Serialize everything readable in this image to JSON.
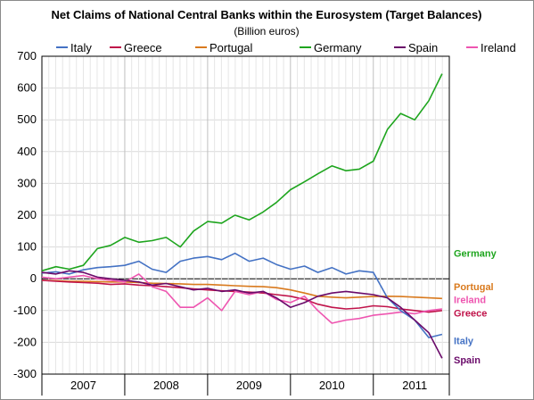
{
  "chart_data": {
    "type": "line",
    "title": "Net Claims of National Central Banks within the Eurosystem (Target Balances)",
    "subtitle": "(Billion euros)",
    "xlabel": "",
    "ylabel": "",
    "ylim": [
      -300,
      700
    ],
    "yticks": [
      700,
      600,
      500,
      400,
      300,
      200,
      100,
      0,
      -100,
      -200,
      -300
    ],
    "xlim": [
      2007.0,
      2011.917
    ],
    "years": [
      "2007",
      "2008",
      "2009",
      "2010",
      "2011"
    ],
    "grid": true,
    "legend_position": "top",
    "series": [
      {
        "name": "Italy",
        "color": "#4472c4",
        "end_label": "Italy",
        "x": [
          2007.0,
          2007.17,
          2007.33,
          2007.5,
          2007.67,
          2007.83,
          2008.0,
          2008.17,
          2008.33,
          2008.5,
          2008.67,
          2008.83,
          2009.0,
          2009.17,
          2009.33,
          2009.5,
          2009.67,
          2009.83,
          2010.0,
          2010.17,
          2010.33,
          2010.5,
          2010.67,
          2010.83,
          2011.0,
          2011.17,
          2011.33,
          2011.5,
          2011.67,
          2011.83
        ],
        "y": [
          18,
          22,
          15,
          28,
          35,
          38,
          42,
          55,
          30,
          20,
          55,
          65,
          70,
          60,
          80,
          55,
          65,
          45,
          30,
          40,
          20,
          35,
          15,
          25,
          20,
          -60,
          -100,
          -130,
          -185,
          -175
        ]
      },
      {
        "name": "Greece",
        "color": "#c0134a",
        "end_label": "Greece",
        "x": [
          2007.0,
          2007.17,
          2007.33,
          2007.5,
          2007.67,
          2007.83,
          2008.0,
          2008.17,
          2008.33,
          2008.5,
          2008.67,
          2008.83,
          2009.0,
          2009.17,
          2009.33,
          2009.5,
          2009.67,
          2009.83,
          2010.0,
          2010.17,
          2010.33,
          2010.5,
          2010.67,
          2010.83,
          2011.0,
          2011.17,
          2011.33,
          2011.5,
          2011.67,
          2011.83
        ],
        "y": [
          -5,
          -8,
          -10,
          -12,
          -14,
          -18,
          -16,
          -20,
          -22,
          -25,
          -28,
          -32,
          -35,
          -38,
          -40,
          -42,
          -45,
          -50,
          -55,
          -65,
          -80,
          -90,
          -95,
          -92,
          -85,
          -88,
          -95,
          -100,
          -105,
          -100
        ]
      },
      {
        "name": "Portugal",
        "color": "#d97a1e",
        "end_label": "Portugal",
        "x": [
          2007.0,
          2007.17,
          2007.33,
          2007.5,
          2007.67,
          2007.83,
          2008.0,
          2008.17,
          2008.33,
          2008.5,
          2008.67,
          2008.83,
          2009.0,
          2009.17,
          2009.33,
          2009.5,
          2009.67,
          2009.83,
          2010.0,
          2010.17,
          2010.33,
          2010.5,
          2010.67,
          2010.83,
          2011.0,
          2011.17,
          2011.33,
          2011.5,
          2011.67,
          2011.83
        ],
        "y": [
          -5,
          -6,
          -8,
          -8,
          -9,
          -10,
          -10,
          -12,
          -14,
          -15,
          -16,
          -18,
          -18,
          -20,
          -22,
          -24,
          -25,
          -28,
          -35,
          -45,
          -55,
          -58,
          -60,
          -58,
          -56,
          -55,
          -56,
          -58,
          -60,
          -62
        ]
      },
      {
        "name": "Germany",
        "color": "#1ea51e",
        "end_label": "Germany",
        "x": [
          2007.0,
          2007.17,
          2007.33,
          2007.5,
          2007.67,
          2007.83,
          2008.0,
          2008.17,
          2008.33,
          2008.5,
          2008.67,
          2008.83,
          2009.0,
          2009.17,
          2009.33,
          2009.5,
          2009.67,
          2009.83,
          2010.0,
          2010.17,
          2010.33,
          2010.5,
          2010.67,
          2010.83,
          2011.0,
          2011.17,
          2011.33,
          2011.5,
          2011.67,
          2011.83
        ],
        "y": [
          25,
          38,
          30,
          42,
          95,
          105,
          130,
          115,
          120,
          130,
          100,
          150,
          180,
          175,
          200,
          185,
          210,
          240,
          280,
          305,
          330,
          355,
          340,
          345,
          370,
          470,
          520,
          500,
          560,
          645
        ]
      },
      {
        "name": "Spain",
        "color": "#6a0a6a",
        "end_label": "Spain",
        "x": [
          2007.0,
          2007.17,
          2007.33,
          2007.5,
          2007.67,
          2007.83,
          2008.0,
          2008.17,
          2008.33,
          2008.5,
          2008.67,
          2008.83,
          2009.0,
          2009.17,
          2009.33,
          2009.5,
          2009.67,
          2009.83,
          2010.0,
          2010.17,
          2010.33,
          2010.5,
          2010.67,
          2010.83,
          2011.0,
          2011.17,
          2011.33,
          2011.5,
          2011.67,
          2011.83
        ],
        "y": [
          20,
          15,
          25,
          20,
          5,
          0,
          -5,
          -10,
          -20,
          -15,
          -25,
          -35,
          -30,
          -40,
          -35,
          -45,
          -40,
          -60,
          -90,
          -75,
          -55,
          -45,
          -40,
          -45,
          -50,
          -60,
          -90,
          -130,
          -170,
          -250
        ]
      },
      {
        "name": "Ireland",
        "color": "#ee55b0",
        "end_label": "Ireland",
        "x": [
          2007.0,
          2007.17,
          2007.33,
          2007.5,
          2007.67,
          2007.83,
          2008.0,
          2008.17,
          2008.33,
          2008.5,
          2008.67,
          2008.83,
          2009.0,
          2009.17,
          2009.33,
          2009.5,
          2009.67,
          2009.83,
          2010.0,
          2010.17,
          2010.33,
          2010.5,
          2010.67,
          2010.83,
          2011.0,
          2011.17,
          2011.33,
          2011.5,
          2011.67,
          2011.83
        ],
        "y": [
          5,
          0,
          5,
          10,
          0,
          -5,
          -10,
          15,
          -25,
          -40,
          -90,
          -90,
          -60,
          -100,
          -40,
          -50,
          -40,
          -65,
          -75,
          -55,
          -100,
          -140,
          -130,
          -125,
          -115,
          -110,
          -105,
          -110,
          -100,
          -95
        ]
      }
    ]
  }
}
